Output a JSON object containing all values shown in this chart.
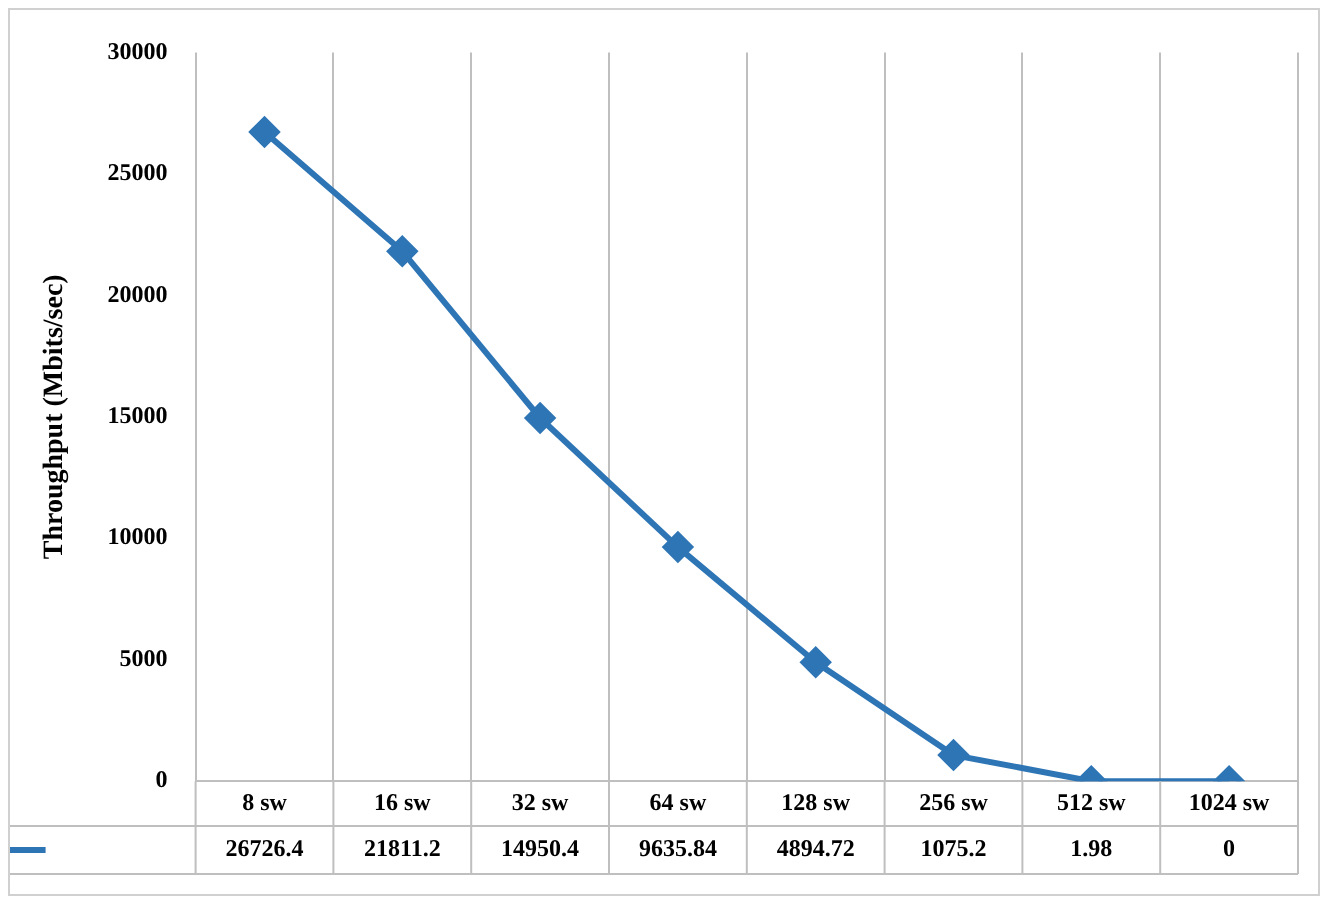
{
  "chart_data": {
    "type": "line",
    "ylabel": "Throughput (Mbits/sec)",
    "categories": [
      "8 sw",
      "16 sw",
      "32 sw",
      "64 sw",
      "128 sw",
      "256 sw",
      "512 sw",
      "1024 sw"
    ],
    "series": [
      {
        "color": "#2e75b6",
        "values": [
          26726.4,
          21811.2,
          14950.4,
          9635.84,
          4894.72,
          1075.2,
          1.98,
          0
        ]
      }
    ],
    "ylim": [
      0,
      30000
    ],
    "yticks": [
      0,
      5000,
      10000,
      15000,
      20000,
      25000,
      30000
    ],
    "grid": "x",
    "marker": "diamond",
    "line_style": "solid",
    "data_labels": true
  }
}
